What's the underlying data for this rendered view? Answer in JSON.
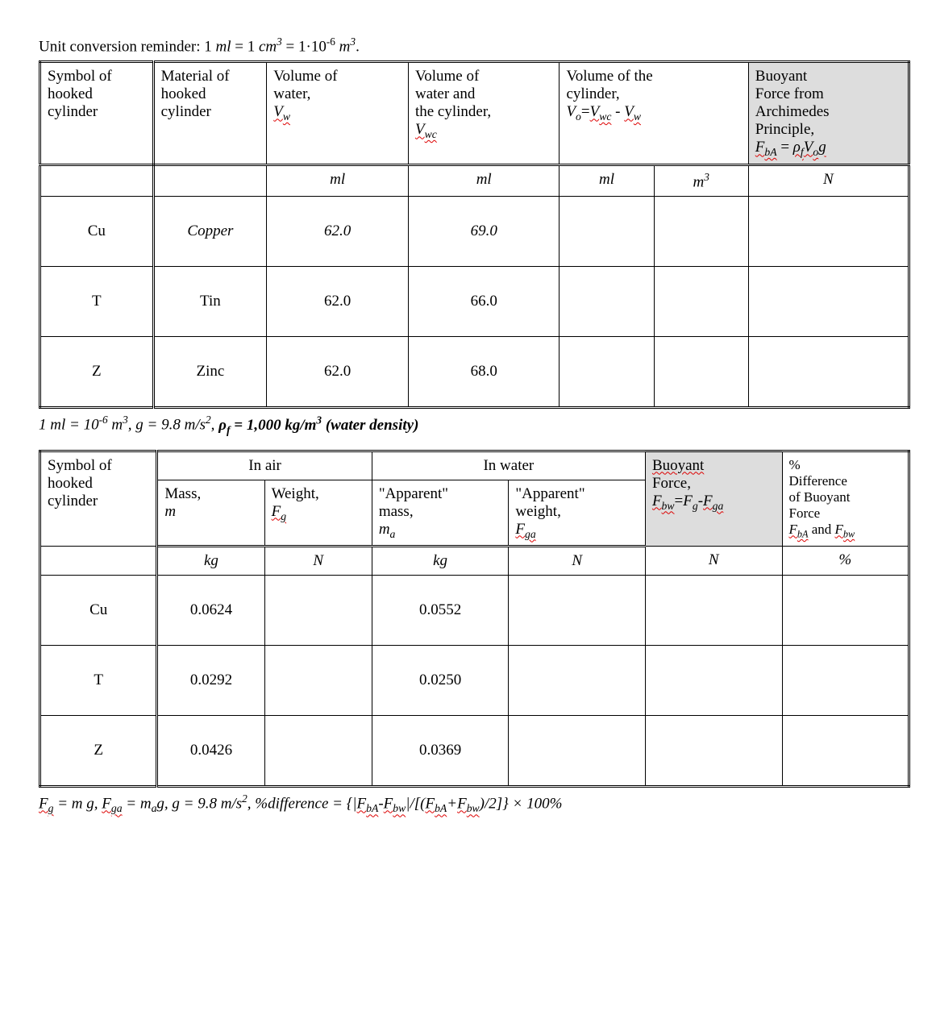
{
  "topline": {
    "prefix": "Unit conversion reminder: 1 ",
    "ml": "ml",
    "eq1": " = 1 ",
    "cm": "cm",
    "eq2": " = 1·10",
    "exp1": "-6",
    "sp": " ",
    "m": "m",
    "exp2": "3",
    "tail": "."
  },
  "table1": {
    "headers": {
      "c1_l1": "Symbol of",
      "c1_l2": "hooked",
      "c1_l3": "cylinder",
      "c2_l1": "Material of",
      "c2_l2": "hooked",
      "c2_l3": "cylinder",
      "c3_l1": "Volume of",
      "c3_l2": "water,",
      "c3_sym": "V",
      "c3_sub": "w",
      "c4_l1": "Volume of",
      "c4_l2": "water and",
      "c4_l3": "the cylinder,",
      "c4_sym": "V",
      "c4_sub": "wc",
      "c5_l1": "Volume of the",
      "c5_l2": "cylinder,",
      "c5_expr_a": "V",
      "c5_expr_asub": "o",
      "c5_expr_eq": "=",
      "c5_expr_b": "V",
      "c5_expr_bsub": "wc",
      "c5_expr_minus": " - ",
      "c5_expr_c": "V",
      "c5_expr_csub": "w",
      "c6_l1": "Buoyant",
      "c6_l2": "Force from",
      "c6_l3": "Archimedes",
      "c6_l4": "Principle,",
      "c6_sym": "F",
      "c6_sub": "bA",
      "c6_eq": " = ",
      "c6_rho": "ρ",
      "c6_rhosub": "f",
      "c6_v": "V",
      "c6_vsub": "o",
      "c6_g": "g"
    },
    "units": {
      "c3": "ml",
      "c4": "ml",
      "c5a": "ml",
      "c5b": "m",
      "c5b_exp": "3",
      "c6": "N"
    },
    "rows": [
      {
        "sym": "Cu",
        "mat": "Copper",
        "vw": "62.0",
        "vwc": "69.0"
      },
      {
        "sym": "T",
        "mat": "Tin",
        "vw": "62.0",
        "vwc": "66.0"
      },
      {
        "sym": "Z",
        "mat": "Zinc",
        "vw": "62.0",
        "vwc": "68.0"
      }
    ]
  },
  "midnote": {
    "a": "1 ml = 10",
    "a_exp": "-6",
    "b": " m",
    "b_exp": "3",
    "c": ", g = 9.8 m/s",
    "c_exp": "2",
    "d": ", ",
    "rho": "ρ",
    "rhosub": "f",
    "e": " = 1,000 kg/m",
    "e_exp": "3",
    "f": " (water density)"
  },
  "table2": {
    "top": {
      "c1_l1": "Symbol of",
      "c1_l2": "hooked",
      "c1_l3": "cylinder",
      "air": "In air",
      "water": "In water",
      "buoy_l1": "Buoyant",
      "buoy_l2": "Force,",
      "buoy_sym": "F",
      "buoy_sub": "bw",
      "buoy_eq": "=",
      "buoy_a": "F",
      "buoy_asub": "g",
      "buoy_minus": "-",
      "buoy_b": "F",
      "buoy_bsub": "ga",
      "pct_l1": "%",
      "pct_l2": "Difference",
      "pct_l3": "of Buoyant",
      "pct_l4": "Force",
      "pct_sa": "F",
      "pct_sasub": "bA",
      "pct_and": " and ",
      "pct_sb": "F",
      "pct_sbsub": "bw"
    },
    "sub": {
      "mass_l1": "Mass,",
      "mass_sym": "m",
      "wt_l1": "Weight,",
      "wt_sym": "F",
      "wt_sub": "g",
      "amass_l1": "\"Apparent\"",
      "amass_l2": "mass,",
      "amass_sym": "m",
      "amass_sub": "a",
      "awt_l1": "\"Apparent\"",
      "awt_l2": "weight,",
      "awt_sym": "F",
      "awt_sub": "ga"
    },
    "units": {
      "c2": "kg",
      "c3": "N",
      "c4": "kg",
      "c5": "N",
      "c6": "N",
      "c7": "%"
    },
    "rows": [
      {
        "sym": "Cu",
        "m": "0.0624",
        "ma": "0.0552"
      },
      {
        "sym": "T",
        "m": "0.0292",
        "ma": "0.0250"
      },
      {
        "sym": "Z",
        "m": "0.0426",
        "ma": "0.0369"
      }
    ]
  },
  "footnote": {
    "a": "F",
    "asub": "g",
    "b": " = m g, ",
    "c": "F",
    "csub": "ga",
    "d": " = m",
    "dsub": "a",
    "e": "g, g = 9.8 m/s",
    "e_exp": "2",
    "f": ", %difference = {|",
    "g": "F",
    "gsub": "bA",
    "h": "-",
    "i": "F",
    "isub": "bw",
    "j": "|/[(",
    "k": "F",
    "ksub": "bA",
    "l": "+",
    "m": "F",
    "msub": "bw",
    "n": ")/2]} × 100%"
  },
  "style": {
    "background": "#ffffff",
    "text_color": "#000000",
    "shade_color": "#dddddd",
    "squiggle_color": "#dd0000",
    "font_family": "Palatino-like serif",
    "base_fontsize_pt": 14,
    "table_outer_border": "3px double #000",
    "cell_border": "1px solid #000"
  }
}
